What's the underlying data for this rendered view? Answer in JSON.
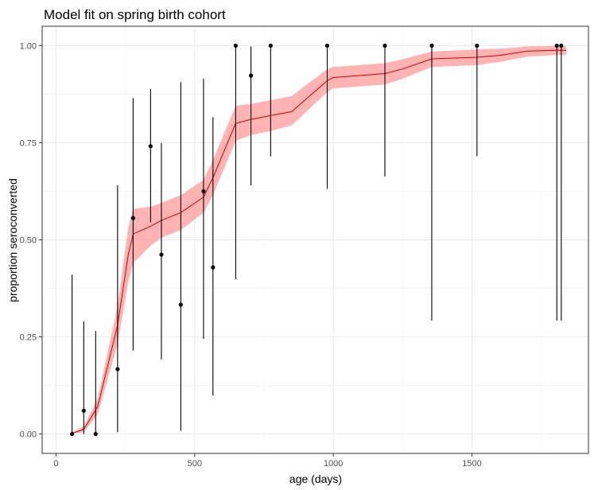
{
  "chart_data": {
    "type": "scatter",
    "title": "Model fit on spring birth cohort",
    "xlabel": "age (days)",
    "ylabel": "proportion seroconverted",
    "xlim": [
      -50,
      1920
    ],
    "ylim": [
      -0.05,
      1.05
    ],
    "x_ticks": [
      0,
      500,
      1000,
      1500
    ],
    "y_ticks": [
      0,
      0.25,
      0.5,
      0.75,
      1
    ],
    "x_tick_labels": [
      "0",
      "500",
      "1000",
      "1500"
    ],
    "y_tick_labels": [
      "0.00",
      "0.25",
      "0.50",
      "0.75",
      "1.00"
    ],
    "grid": true,
    "legend": "none",
    "observations": [
      {
        "x": 58,
        "y": 0.0,
        "lo": 0.0,
        "hi": 0.41
      },
      {
        "x": 100,
        "y": 0.06,
        "lo": 0.0,
        "hi": 0.29
      },
      {
        "x": 143,
        "y": 0.0,
        "lo": 0.0,
        "hi": 0.265
      },
      {
        "x": 222,
        "y": 0.167,
        "lo": 0.005,
        "hi": 0.64
      },
      {
        "x": 278,
        "y": 0.556,
        "lo": 0.215,
        "hi": 0.865
      },
      {
        "x": 341,
        "y": 0.741,
        "lo": 0.545,
        "hi": 0.888
      },
      {
        "x": 380,
        "y": 0.462,
        "lo": 0.192,
        "hi": 0.749
      },
      {
        "x": 450,
        "y": 0.333,
        "lo": 0.008,
        "hi": 0.906
      },
      {
        "x": 532,
        "y": 0.625,
        "lo": 0.245,
        "hi": 0.915
      },
      {
        "x": 566,
        "y": 0.429,
        "lo": 0.099,
        "hi": 0.816
      },
      {
        "x": 648,
        "y": 1.0,
        "lo": 0.398,
        "hi": 1.0
      },
      {
        "x": 703,
        "y": 0.923,
        "lo": 0.64,
        "hi": 0.998
      },
      {
        "x": 774,
        "y": 1.0,
        "lo": 0.715,
        "hi": 1.0
      },
      {
        "x": 978,
        "y": 1.0,
        "lo": 0.631,
        "hi": 1.0
      },
      {
        "x": 1186,
        "y": 1.0,
        "lo": 0.663,
        "hi": 1.0
      },
      {
        "x": 1355,
        "y": 1.0,
        "lo": 0.292,
        "hi": 1.0
      },
      {
        "x": 1518,
        "y": 1.0,
        "lo": 0.715,
        "hi": 1.0
      },
      {
        "x": 1806,
        "y": 1.0,
        "lo": 0.292,
        "hi": 1.0
      },
      {
        "x": 1822,
        "y": 1.0,
        "lo": 0.292,
        "hi": 1.0
      }
    ],
    "fit": {
      "line_color": "#cc0000",
      "band_color": "#ff9999",
      "points": [
        {
          "x": 50,
          "y": 0.0,
          "lo": 0.0,
          "hi": 0.0
        },
        {
          "x": 100,
          "y": 0.012,
          "lo": 0.005,
          "hi": 0.02
        },
        {
          "x": 150,
          "y": 0.07,
          "lo": 0.05,
          "hi": 0.09
        },
        {
          "x": 222,
          "y": 0.28,
          "lo": 0.23,
          "hi": 0.33
        },
        {
          "x": 260,
          "y": 0.46,
          "lo": 0.39,
          "hi": 0.53
        },
        {
          "x": 278,
          "y": 0.515,
          "lo": 0.44,
          "hi": 0.58
        },
        {
          "x": 341,
          "y": 0.535,
          "lo": 0.485,
          "hi": 0.585
        },
        {
          "x": 380,
          "y": 0.55,
          "lo": 0.505,
          "hi": 0.595
        },
        {
          "x": 450,
          "y": 0.57,
          "lo": 0.525,
          "hi": 0.615
        },
        {
          "x": 532,
          "y": 0.61,
          "lo": 0.57,
          "hi": 0.655
        },
        {
          "x": 566,
          "y": 0.66,
          "lo": 0.615,
          "hi": 0.705
        },
        {
          "x": 648,
          "y": 0.8,
          "lo": 0.755,
          "hi": 0.845
        },
        {
          "x": 703,
          "y": 0.81,
          "lo": 0.77,
          "hi": 0.85
        },
        {
          "x": 774,
          "y": 0.82,
          "lo": 0.78,
          "hi": 0.86
        },
        {
          "x": 850,
          "y": 0.83,
          "lo": 0.795,
          "hi": 0.87
        },
        {
          "x": 978,
          "y": 0.91,
          "lo": 0.88,
          "hi": 0.94
        },
        {
          "x": 1000,
          "y": 0.918,
          "lo": 0.89,
          "hi": 0.945
        },
        {
          "x": 1186,
          "y": 0.928,
          "lo": 0.9,
          "hi": 0.955
        },
        {
          "x": 1250,
          "y": 0.94,
          "lo": 0.915,
          "hi": 0.965
        },
        {
          "x": 1355,
          "y": 0.966,
          "lo": 0.945,
          "hi": 0.985
        },
        {
          "x": 1518,
          "y": 0.97,
          "lo": 0.95,
          "hi": 0.99
        },
        {
          "x": 1600,
          "y": 0.975,
          "lo": 0.958,
          "hi": 0.992
        },
        {
          "x": 1700,
          "y": 0.986,
          "lo": 0.972,
          "hi": 0.998
        },
        {
          "x": 1806,
          "y": 0.988,
          "lo": 0.976,
          "hi": 0.999
        },
        {
          "x": 1840,
          "y": 0.988,
          "lo": 0.976,
          "hi": 0.999
        }
      ]
    }
  }
}
